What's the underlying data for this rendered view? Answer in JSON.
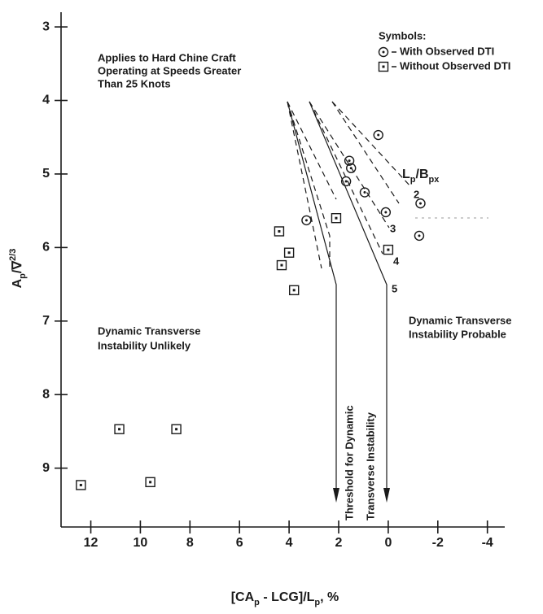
{
  "chart_data": {
    "type": "scatter",
    "annotations": {
      "applies": [
        "Applies to Hard Chine Craft",
        "Operating at Speeds Greater",
        "Than 25 Knots"
      ],
      "symbols_title": "Symbols:",
      "unlikely": [
        "Dynamic Transverse",
        "Instability Unlikely"
      ],
      "probable": [
        "Dynamic Transverse",
        "Instability Probable"
      ],
      "threshold": [
        "Threshold for Dynamic",
        "Transverse Instability"
      ],
      "ratio_label": [
        "L",
        "p",
        "/B",
        "px"
      ],
      "ratio_values": [
        "2",
        "3",
        "4",
        "5"
      ]
    },
    "x_label": [
      "[CA",
      "p",
      " - LCG]/L",
      "p",
      ", %"
    ],
    "y_label": [
      "A",
      "p",
      "/∇",
      "2/3"
    ],
    "xlim": [
      13.2,
      -4.7
    ],
    "ylim": [
      2.8,
      9.8
    ],
    "xticks": [
      12,
      10,
      8,
      6,
      4,
      2,
      0,
      -2,
      -4
    ],
    "yticks": [
      3,
      4,
      5,
      6,
      7,
      8,
      9
    ],
    "series": [
      {
        "name": "With Observed DTI",
        "marker": "circle",
        "color": "#1a1a1a",
        "x": [
          0.4,
          1.57,
          1.5,
          1.7,
          0.95,
          -1.3,
          0.1,
          -1.25,
          3.3
        ],
        "values": [
          4.47,
          4.82,
          4.92,
          5.1,
          5.25,
          5.4,
          5.52,
          5.84,
          5.63
        ]
      },
      {
        "name": "Without Observed DTI",
        "marker": "square",
        "color": "#1a1a1a",
        "x": [
          4.4,
          2.1,
          4.0,
          4.3,
          3.8,
          0.0,
          10.85,
          8.55,
          12.4,
          9.6
        ],
        "values": [
          5.78,
          5.6,
          6.07,
          6.24,
          6.58,
          6.03,
          8.47,
          8.47,
          9.23,
          9.19
        ]
      }
    ]
  }
}
